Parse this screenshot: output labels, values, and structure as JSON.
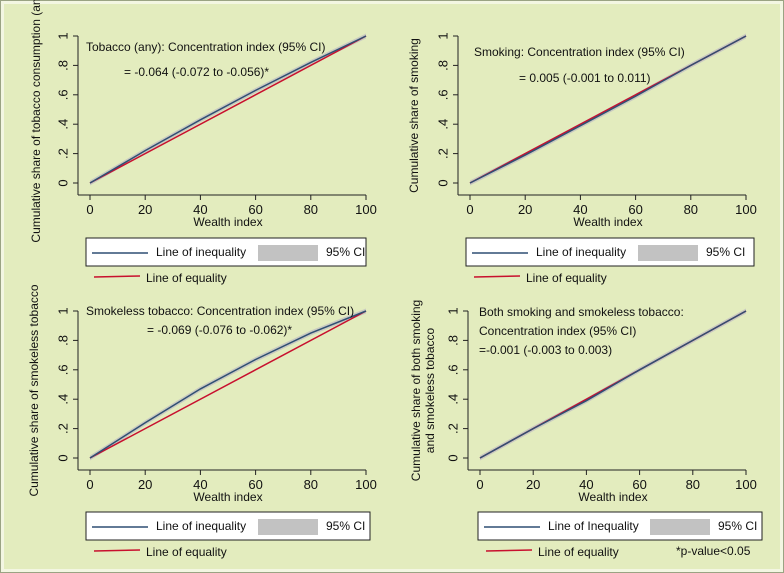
{
  "colors": {
    "background": "#e3ecbe",
    "inequality_line": "#2f4f73",
    "equality_line": "#c8102e",
    "ci_band": "#c2c2c2",
    "legend_border": "#222222"
  },
  "footnote": "*p-value<0.05",
  "chart_data": [
    {
      "type": "line",
      "id": "tobacco-any",
      "title": "Tobacco (any): Concentration index (95% CI)",
      "annotation": "= -0.064 (-0.072 to -0.056)*",
      "xlabel": "Wealth index",
      "ylabel": "Cumulative share of tobacco consumption (any)",
      "xlim": [
        0,
        100
      ],
      "ylim": [
        0,
        1
      ],
      "xticks": [
        0,
        20,
        40,
        60,
        80,
        100
      ],
      "yticks": [
        0,
        0.2,
        0.4,
        0.6,
        0.8,
        1
      ],
      "ytick_labels": [
        "0",
        ".2",
        ".4",
        ".6",
        ".8",
        "1"
      ],
      "legend": {
        "inequality": "Line of inequality",
        "ci": "95% CI",
        "equality": "Line of equality"
      },
      "series": [
        {
          "name": "Line of inequality",
          "x": [
            0,
            20,
            40,
            60,
            80,
            100
          ],
          "y": [
            0,
            0.22,
            0.43,
            0.63,
            0.82,
            1
          ]
        },
        {
          "name": "Line of equality",
          "x": [
            0,
            100
          ],
          "y": [
            0,
            1
          ]
        }
      ]
    },
    {
      "type": "line",
      "id": "smoking",
      "title": "Smoking: Concentration index (95% CI)",
      "annotation": "= 0.005 (-0.001 to 0.011)",
      "xlabel": "Wealth index",
      "ylabel": "Cumulative share of smoking",
      "xlim": [
        0,
        100
      ],
      "ylim": [
        0,
        1
      ],
      "xticks": [
        0,
        20,
        40,
        60,
        80,
        100
      ],
      "yticks": [
        0,
        0.2,
        0.4,
        0.6,
        0.8,
        1
      ],
      "ytick_labels": [
        "0",
        ".2",
        ".4",
        ".6",
        ".8",
        "1"
      ],
      "legend": {
        "inequality": "Line of inequality",
        "ci": "95% CI",
        "equality": "Line of equality"
      },
      "series": [
        {
          "name": "Line of inequality",
          "x": [
            0,
            20,
            40,
            60,
            80,
            100
          ],
          "y": [
            0,
            0.19,
            0.39,
            0.59,
            0.8,
            1
          ]
        },
        {
          "name": "Line of equality",
          "x": [
            0,
            100
          ],
          "y": [
            0,
            1
          ]
        }
      ]
    },
    {
      "type": "line",
      "id": "smokeless",
      "title": "Smokeless tobacco: Concentration index (95% CI)",
      "annotation": "= -0.069 (-0.076 to -0.062)*",
      "xlabel": "Wealth index",
      "ylabel": "Cumulative share of smokeless tobacco",
      "xlim": [
        0,
        100
      ],
      "ylim": [
        0,
        1
      ],
      "xticks": [
        0,
        20,
        40,
        60,
        80,
        100
      ],
      "yticks": [
        0,
        0.2,
        0.4,
        0.6,
        0.8,
        1
      ],
      "ytick_labels": [
        "0",
        ".2",
        ".4",
        ".6",
        ".8",
        "1"
      ],
      "legend": {
        "inequality": "Line of inequality",
        "ci": "95% CI",
        "equality": "Line of equality"
      },
      "series": [
        {
          "name": "Line of inequality",
          "x": [
            0,
            20,
            40,
            60,
            80,
            100
          ],
          "y": [
            0,
            0.24,
            0.47,
            0.67,
            0.85,
            1
          ]
        },
        {
          "name": "Line of equality",
          "x": [
            0,
            100
          ],
          "y": [
            0,
            1
          ]
        }
      ]
    },
    {
      "type": "line",
      "id": "both",
      "title": "Both smoking and smokeless tobacco:",
      "title2": "Concentration index (95% CI)",
      "annotation": "=-0.001 (-0.003 to 0.003)",
      "xlabel": "Wealth index",
      "ylabel": "Cumulative share of both smoking",
      "ylabel2": "and smokeless tobacco",
      "xlim": [
        0,
        100
      ],
      "ylim": [
        0,
        1
      ],
      "xticks": [
        0,
        20,
        40,
        60,
        80,
        100
      ],
      "yticks": [
        0,
        0.2,
        0.4,
        0.6,
        0.8,
        1
      ],
      "ytick_labels": [
        "0",
        ".2",
        ".4",
        ".6",
        ".8",
        "1"
      ],
      "legend": {
        "inequality": "Line of Inequality",
        "ci": "95% CI",
        "equality": "Line of equality"
      },
      "series": [
        {
          "name": "Line of inequality",
          "x": [
            0,
            20,
            40,
            60,
            80,
            100
          ],
          "y": [
            0,
            0.2,
            0.39,
            0.6,
            0.8,
            1
          ]
        },
        {
          "name": "Line of equality",
          "x": [
            0,
            100
          ],
          "y": [
            0,
            1
          ]
        }
      ]
    }
  ]
}
